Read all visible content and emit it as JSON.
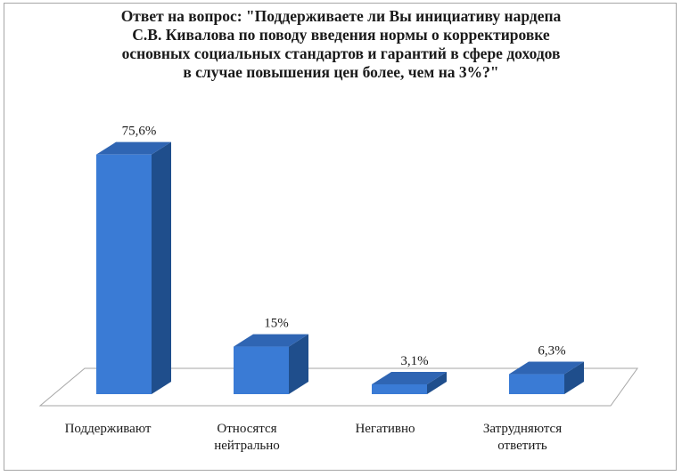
{
  "chart_data": {
    "type": "bar",
    "title_lines": [
      "Ответ на вопрос: \"Поддерживаете ли Вы инициативу нардепа",
      "С.В. Кивалова по поводу введения нормы о корректировке",
      "основных социальных стандартов и гарантий в сфере доходов",
      "в случае повышения цен более, чем на 3%?\""
    ],
    "categories": [
      [
        "Поддерживают"
      ],
      [
        "Относятся",
        "нейтрально"
      ],
      [
        "Негативно"
      ],
      [
        "Затрудняются",
        "ответить"
      ]
    ],
    "values": [
      75.6,
      15,
      3.1,
      6.3
    ],
    "data_labels": [
      "75,6%",
      "15%",
      "3,1%",
      "6,3%"
    ],
    "ylim": [
      0,
      80
    ],
    "grid": false,
    "legend": "none",
    "colors": {
      "front": "#3a7bd5",
      "side": "#1f4e8c",
      "top": "#2f65b3",
      "floor_stroke": "#a6a6a6"
    }
  }
}
